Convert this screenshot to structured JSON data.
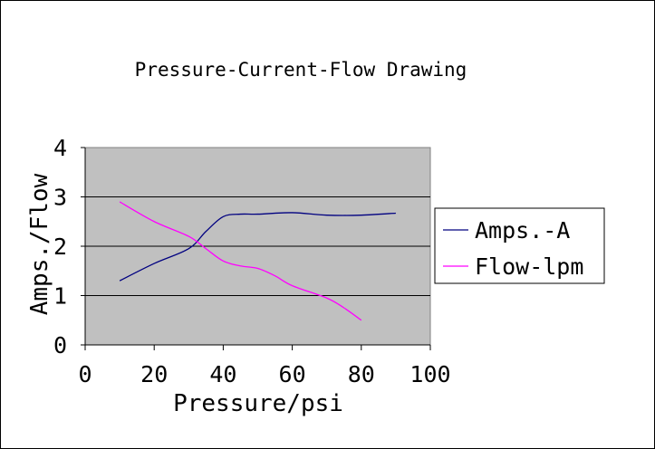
{
  "chart_data": {
    "type": "line",
    "title": "Pressure-Current-Flow Drawing",
    "xlabel": "Pressure/psi",
    "ylabel": "Amps./Flow",
    "xlim": [
      0,
      100
    ],
    "ylim": [
      0,
      4
    ],
    "xticks": [
      "0",
      "20",
      "40",
      "60",
      "80",
      "100"
    ],
    "yticks": [
      "0",
      "1",
      "2",
      "3",
      "4"
    ],
    "grid": true,
    "legend": "right",
    "background": "#c0c0c0",
    "series": [
      {
        "name": "Amps.-A",
        "color": "#000080",
        "x": [
          10,
          20,
          30,
          35,
          40,
          45,
          50,
          60,
          70,
          80,
          90
        ],
        "y": [
          1.3,
          1.65,
          1.95,
          2.3,
          2.6,
          2.65,
          2.65,
          2.68,
          2.63,
          2.63,
          2.67
        ]
      },
      {
        "name": "Flow-lpm",
        "color": "#ff00ff",
        "x": [
          10,
          20,
          30,
          35,
          40,
          45,
          50,
          55,
          60,
          70,
          75,
          80
        ],
        "y": [
          2.9,
          2.5,
          2.2,
          1.95,
          1.7,
          1.6,
          1.55,
          1.4,
          1.2,
          0.95,
          0.75,
          0.5
        ]
      }
    ]
  }
}
